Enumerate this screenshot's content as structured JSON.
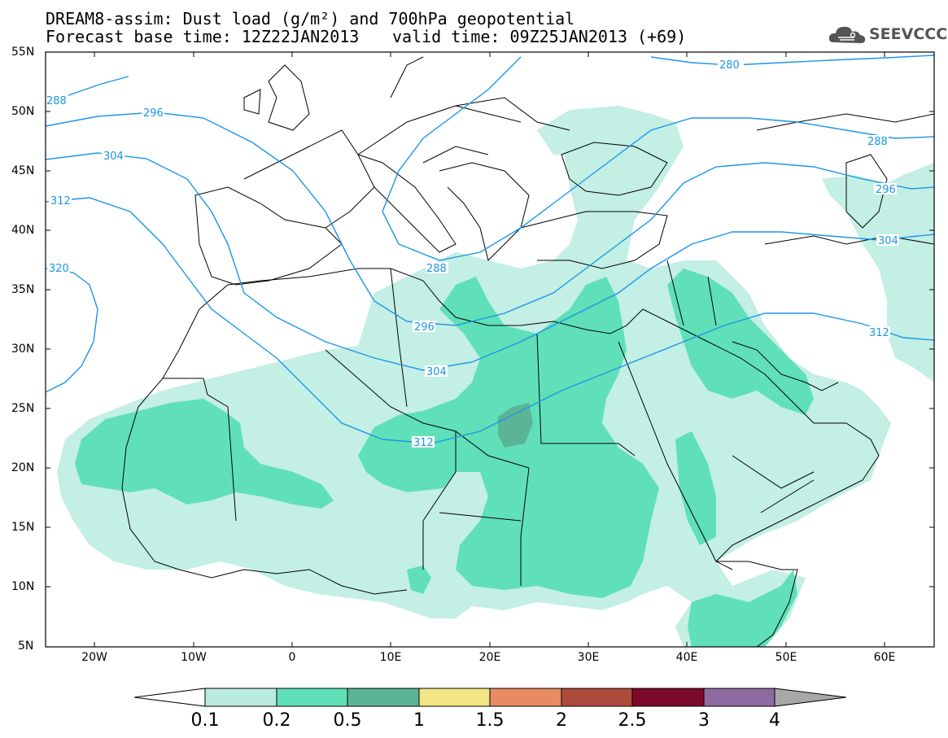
{
  "header": {
    "title_line1": "DREAM8-assim: Dust load (g/m²) and 700hPa geopotential",
    "title_line2": "Forecast base time: 12Z22JAN2013",
    "valid_time": "valid time: 09Z25JAN2013 (+69)",
    "logo_text": "SEEVCCC",
    "logo_icon": "cloud-icon"
  },
  "map": {
    "lat_labels": [
      "55N",
      "50N",
      "45N",
      "40N",
      "35N",
      "30N",
      "25N",
      "20N",
      "15N",
      "10N",
      "5N"
    ],
    "lon_labels": [
      "20W",
      "10W",
      "0",
      "10E",
      "20E",
      "30E",
      "40E",
      "50E",
      "60E"
    ],
    "contour_labels": [
      "280",
      "288",
      "288",
      "288",
      "296",
      "296",
      "296",
      "304",
      "304",
      "304",
      "312",
      "312",
      "312",
      "320"
    ]
  },
  "colorbar": {
    "levels": [
      "0.1",
      "0.2",
      "0.5",
      "1",
      "1.5",
      "2",
      "2.5",
      "3",
      "4"
    ],
    "colors": [
      "#b9ecdf",
      "#5fe0b8",
      "#5bb496",
      "#f1e585",
      "#e78b63",
      "#ad4b3d",
      "#7b0a28",
      "#8d6a9f",
      "#a8a8a8"
    ],
    "under_color": "#ffffff"
  },
  "colors": {
    "contour": "#1c96e8",
    "dust_light": "#c3efe4",
    "dust_medium": "#5fe0b8",
    "dust_dark": "#5bb496",
    "border": "#000000"
  }
}
